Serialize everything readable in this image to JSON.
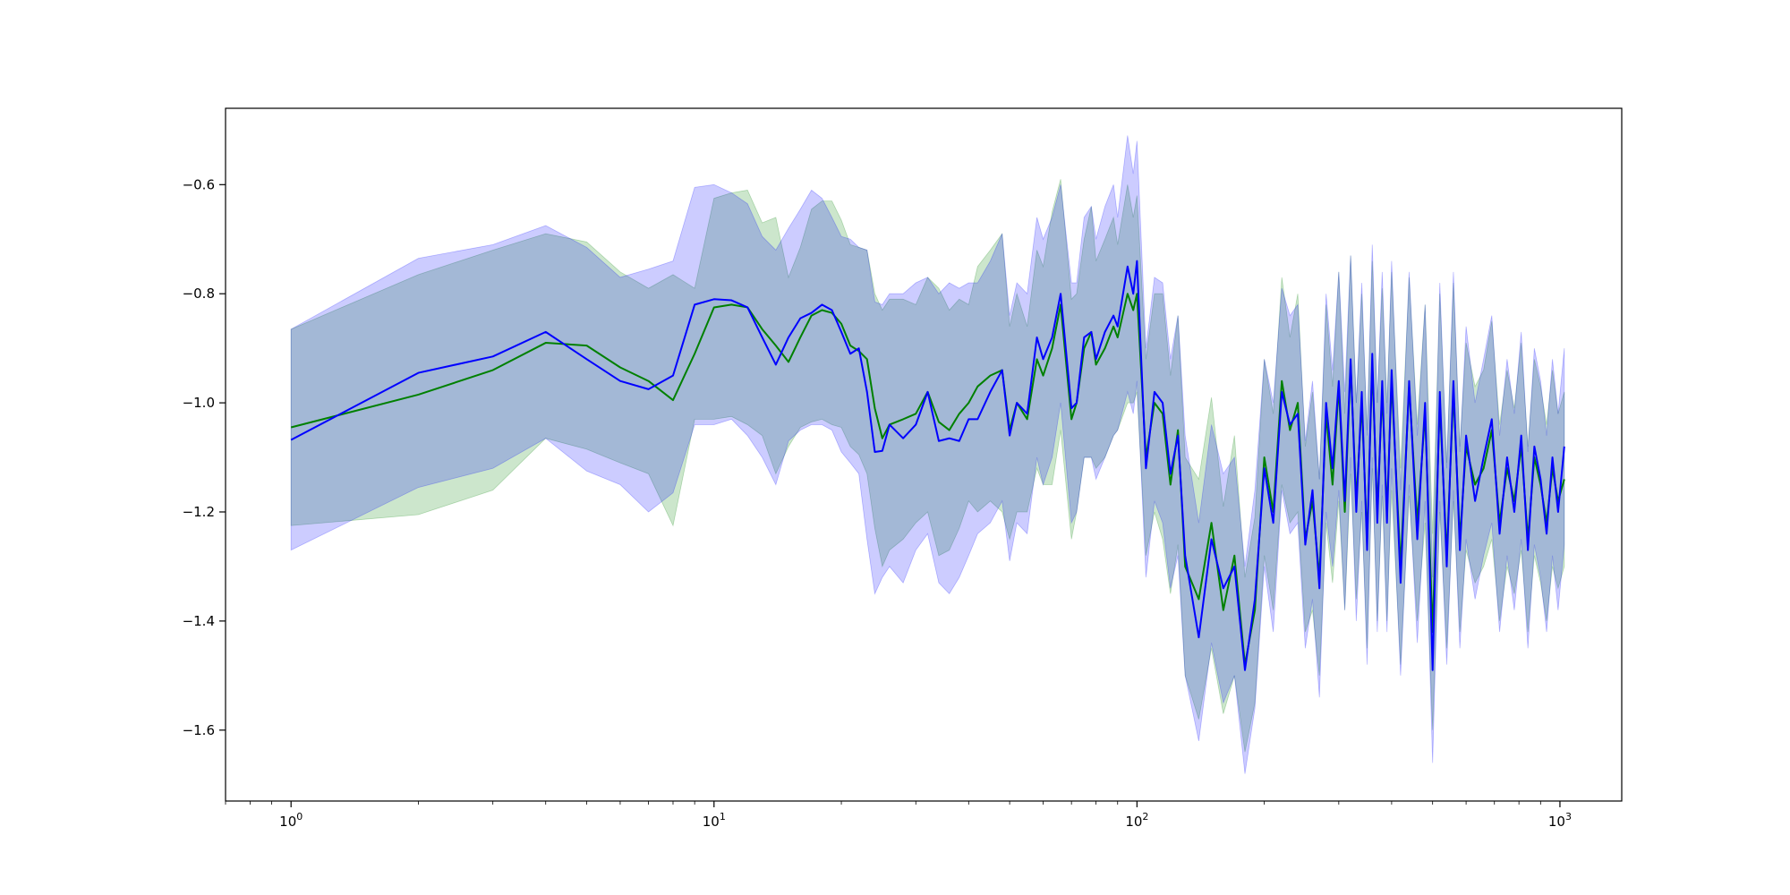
{
  "chart_data": {
    "type": "line",
    "title": "",
    "xlabel": "",
    "ylabel": "",
    "xscale": "log",
    "xlim": [
      0.7,
      1400
    ],
    "ylim": [
      -1.73,
      -0.46
    ],
    "grid": false,
    "legend": "none",
    "x_ticks": [
      {
        "value": 1,
        "base": "10",
        "exp": "0"
      },
      {
        "value": 10,
        "base": "10",
        "exp": "1"
      },
      {
        "value": 100,
        "base": "10",
        "exp": "2"
      },
      {
        "value": 1000,
        "base": "10",
        "exp": "3"
      }
    ],
    "y_ticks": [
      {
        "value": -0.6,
        "label": "−0.6"
      },
      {
        "value": -0.8,
        "label": "−0.8"
      },
      {
        "value": -1.0,
        "label": "−1.0"
      },
      {
        "value": -1.2,
        "label": "−1.2"
      },
      {
        "value": -1.4,
        "label": "−1.4"
      },
      {
        "value": -1.6,
        "label": "−1.6"
      }
    ],
    "series": [
      {
        "color": "#008000",
        "band_color": "#008000",
        "x": [
          1,
          2,
          3,
          4,
          5,
          6,
          7,
          8,
          9,
          10,
          11,
          12,
          13,
          14,
          15,
          16,
          17,
          18,
          19,
          20,
          21,
          22,
          23,
          24,
          25,
          26,
          28,
          30,
          32,
          34,
          36,
          38,
          40,
          42,
          45,
          48,
          50,
          52,
          55,
          58,
          60,
          63,
          66,
          70,
          72,
          75,
          78,
          80,
          84,
          88,
          90,
          95,
          98,
          100,
          105,
          110,
          115,
          120,
          125,
          130,
          140,
          150,
          160,
          170,
          180,
          190,
          200,
          210,
          220,
          230,
          240,
          250,
          260,
          270,
          280,
          290,
          300,
          310,
          320,
          330,
          340,
          350,
          360,
          370,
          380,
          390,
          400,
          420,
          440,
          460,
          480,
          500,
          520,
          540,
          560,
          580,
          600,
          630,
          660,
          690,
          720,
          750,
          780,
          810,
          840,
          870,
          900,
          930,
          960,
          990,
          1024
        ],
        "y": [
          -1.045,
          -0.985,
          -0.94,
          -0.89,
          -0.895,
          -0.935,
          -0.96,
          -0.995,
          -0.91,
          -0.825,
          -0.82,
          -0.825,
          -0.865,
          -0.895,
          -0.925,
          -0.88,
          -0.84,
          -0.83,
          -0.835,
          -0.855,
          -0.895,
          -0.905,
          -0.92,
          -1.01,
          -1.065,
          -1.04,
          -1.03,
          -1.02,
          -0.98,
          -1.035,
          -1.05,
          -1.02,
          -1.0,
          -0.97,
          -0.95,
          -0.94,
          -1.05,
          -1.0,
          -1.03,
          -0.92,
          -0.95,
          -0.9,
          -0.82,
          -1.03,
          -1.0,
          -0.9,
          -0.87,
          -0.93,
          -0.9,
          -0.86,
          -0.88,
          -0.8,
          -0.83,
          -0.8,
          -1.1,
          -1.0,
          -1.02,
          -1.15,
          -1.05,
          -1.3,
          -1.36,
          -1.22,
          -1.38,
          -1.28,
          -1.48,
          -1.38,
          -1.1,
          -1.2,
          -0.96,
          -1.05,
          -1.0,
          -1.25,
          -1.18,
          -1.32,
          -1.02,
          -1.15,
          -0.97,
          -1.2,
          -0.93,
          -1.18,
          -1.0,
          -1.25,
          -0.93,
          -1.2,
          -0.98,
          -1.2,
          -0.96,
          -1.3,
          -0.97,
          -1.22,
          -1.02,
          -1.42,
          -1.0,
          -1.28,
          -0.98,
          -1.25,
          -1.08,
          -1.15,
          -1.12,
          -1.05,
          -1.22,
          -1.12,
          -1.18,
          -1.08,
          -1.25,
          -1.1,
          -1.15,
          -1.22,
          -1.12,
          -1.18,
          -1.14
        ],
        "lower": [
          -1.225,
          -1.205,
          -1.16,
          -1.065,
          -1.085,
          -1.11,
          -1.13,
          -1.225,
          -1.03,
          -1.03,
          -1.025,
          -1.04,
          -1.06,
          -1.13,
          -1.08,
          -1.045,
          -1.035,
          -1.03,
          -1.04,
          -1.045,
          -1.08,
          -1.095,
          -1.13,
          -1.23,
          -1.3,
          -1.27,
          -1.25,
          -1.22,
          -1.2,
          -1.28,
          -1.27,
          -1.23,
          -1.18,
          -1.2,
          -1.18,
          -1.2,
          -1.25,
          -1.2,
          -1.2,
          -1.12,
          -1.15,
          -1.15,
          -1.05,
          -1.25,
          -1.2,
          -1.1,
          -1.1,
          -1.12,
          -1.1,
          -1.06,
          -1.05,
          -1.0,
          -1.0,
          -0.98,
          -1.28,
          -1.2,
          -1.25,
          -1.35,
          -1.26,
          -1.5,
          -1.58,
          -1.45,
          -1.57,
          -1.5,
          -1.64,
          -1.55,
          -1.28,
          -1.38,
          -1.15,
          -1.22,
          -1.2,
          -1.42,
          -1.38,
          -1.5,
          -1.22,
          -1.33,
          -1.18,
          -1.38,
          -1.13,
          -1.36,
          -1.2,
          -1.45,
          -1.12,
          -1.4,
          -1.17,
          -1.4,
          -1.16,
          -1.48,
          -1.17,
          -1.4,
          -1.22,
          -1.6,
          -1.2,
          -1.45,
          -1.18,
          -1.42,
          -1.27,
          -1.33,
          -1.3,
          -1.25,
          -1.4,
          -1.3,
          -1.35,
          -1.27,
          -1.42,
          -1.28,
          -1.33,
          -1.4,
          -1.3,
          -1.34,
          -1.3
        ],
        "upper": [
          -0.865,
          -0.765,
          -0.72,
          -0.69,
          -0.705,
          -0.76,
          -0.79,
          -0.765,
          -0.79,
          -0.625,
          -0.615,
          -0.61,
          -0.67,
          -0.66,
          -0.77,
          -0.715,
          -0.645,
          -0.63,
          -0.63,
          -0.665,
          -0.71,
          -0.715,
          -0.72,
          -0.8,
          -0.83,
          -0.81,
          -0.81,
          -0.82,
          -0.77,
          -0.79,
          -0.83,
          -0.81,
          -0.82,
          -0.75,
          -0.72,
          -0.69,
          -0.86,
          -0.8,
          -0.86,
          -0.72,
          -0.75,
          -0.65,
          -0.59,
          -0.81,
          -0.8,
          -0.7,
          -0.64,
          -0.74,
          -0.7,
          -0.66,
          -0.71,
          -0.6,
          -0.66,
          -0.62,
          -0.92,
          -0.8,
          -0.8,
          -0.95,
          -0.84,
          -1.1,
          -1.14,
          -0.99,
          -1.19,
          -1.06,
          -1.32,
          -1.21,
          -0.92,
          -1.02,
          -0.77,
          -0.88,
          -0.8,
          -1.08,
          -0.98,
          -1.14,
          -0.82,
          -0.97,
          -0.76,
          -1.02,
          -0.73,
          -1.0,
          -0.8,
          -1.05,
          -0.74,
          -1.0,
          -0.79,
          -1.0,
          -0.76,
          -1.12,
          -0.77,
          -1.04,
          -0.82,
          -1.24,
          -0.8,
          -1.11,
          -0.78,
          -1.08,
          -0.89,
          -0.97,
          -0.94,
          -0.85,
          -1.04,
          -0.94,
          -1.01,
          -0.89,
          -1.08,
          -0.92,
          -0.97,
          -1.04,
          -0.94,
          -1.02,
          -0.98
        ]
      },
      {
        "color": "#0000ff",
        "band_color": "#0000ff",
        "x": [
          1,
          2,
          3,
          4,
          5,
          6,
          7,
          8,
          9,
          10,
          11,
          12,
          13,
          14,
          15,
          16,
          17,
          18,
          19,
          20,
          21,
          22,
          23,
          24,
          25,
          26,
          28,
          30,
          32,
          34,
          36,
          38,
          40,
          42,
          45,
          48,
          50,
          52,
          55,
          58,
          60,
          63,
          66,
          70,
          72,
          75,
          78,
          80,
          84,
          88,
          90,
          95,
          98,
          100,
          105,
          110,
          115,
          120,
          125,
          130,
          140,
          150,
          160,
          170,
          180,
          190,
          200,
          210,
          220,
          230,
          240,
          250,
          260,
          270,
          280,
          290,
          300,
          310,
          320,
          330,
          340,
          350,
          360,
          370,
          380,
          390,
          400,
          420,
          440,
          460,
          480,
          500,
          520,
          540,
          560,
          580,
          600,
          630,
          660,
          690,
          720,
          750,
          780,
          810,
          840,
          870,
          900,
          930,
          960,
          990,
          1024
        ],
        "y": [
          -1.068,
          -0.945,
          -0.915,
          -0.87,
          -0.92,
          -0.96,
          -0.975,
          -0.95,
          -0.82,
          -0.81,
          -0.812,
          -0.825,
          -0.88,
          -0.93,
          -0.88,
          -0.845,
          -0.835,
          -0.82,
          -0.83,
          -0.87,
          -0.91,
          -0.9,
          -0.98,
          -1.09,
          -1.088,
          -1.04,
          -1.065,
          -1.04,
          -0.98,
          -1.07,
          -1.065,
          -1.07,
          -1.03,
          -1.03,
          -0.98,
          -0.94,
          -1.06,
          -1.0,
          -1.02,
          -0.88,
          -0.92,
          -0.88,
          -0.8,
          -1.01,
          -1.0,
          -0.88,
          -0.87,
          -0.92,
          -0.87,
          -0.84,
          -0.86,
          -0.75,
          -0.8,
          -0.74,
          -1.12,
          -0.98,
          -1.0,
          -1.13,
          -1.06,
          -1.28,
          -1.43,
          -1.25,
          -1.34,
          -1.3,
          -1.49,
          -1.36,
          -1.12,
          -1.22,
          -0.98,
          -1.04,
          -1.02,
          -1.26,
          -1.16,
          -1.34,
          -1.0,
          -1.12,
          -0.96,
          -1.18,
          -0.92,
          -1.2,
          -0.98,
          -1.27,
          -0.91,
          -1.22,
          -0.96,
          -1.22,
          -0.94,
          -1.33,
          -0.96,
          -1.25,
          -1.0,
          -1.49,
          -0.98,
          -1.3,
          -0.96,
          -1.27,
          -1.06,
          -1.18,
          -1.1,
          -1.03,
          -1.24,
          -1.1,
          -1.2,
          -1.06,
          -1.27,
          -1.08,
          -1.14,
          -1.24,
          -1.1,
          -1.2,
          -1.08
        ],
        "lower": [
          -1.27,
          -1.155,
          -1.12,
          -1.065,
          -1.125,
          -1.15,
          -1.2,
          -1.165,
          -1.04,
          -1.04,
          -1.03,
          -1.06,
          -1.1,
          -1.15,
          -1.07,
          -1.05,
          -1.04,
          -1.04,
          -1.05,
          -1.09,
          -1.11,
          -1.13,
          -1.25,
          -1.35,
          -1.32,
          -1.3,
          -1.33,
          -1.27,
          -1.24,
          -1.33,
          -1.35,
          -1.32,
          -1.28,
          -1.24,
          -1.22,
          -1.18,
          -1.29,
          -1.22,
          -1.24,
          -1.1,
          -1.15,
          -1.1,
          -1.0,
          -1.22,
          -1.2,
          -1.1,
          -1.1,
          -1.14,
          -1.1,
          -1.06,
          -1.05,
          -0.98,
          -1.02,
          -0.96,
          -1.32,
          -1.18,
          -1.22,
          -1.34,
          -1.28,
          -1.5,
          -1.62,
          -1.44,
          -1.55,
          -1.5,
          -1.68,
          -1.56,
          -1.3,
          -1.42,
          -1.16,
          -1.24,
          -1.22,
          -1.45,
          -1.36,
          -1.54,
          -1.2,
          -1.3,
          -1.16,
          -1.38,
          -1.1,
          -1.4,
          -1.18,
          -1.48,
          -1.1,
          -1.42,
          -1.15,
          -1.42,
          -1.12,
          -1.5,
          -1.15,
          -1.44,
          -1.18,
          -1.66,
          -1.18,
          -1.48,
          -1.16,
          -1.45,
          -1.25,
          -1.36,
          -1.28,
          -1.22,
          -1.42,
          -1.28,
          -1.38,
          -1.25,
          -1.45,
          -1.26,
          -1.32,
          -1.42,
          -1.28,
          -1.38,
          -1.26
        ],
        "upper": [
          -0.865,
          -0.735,
          -0.71,
          -0.675,
          -0.715,
          -0.77,
          -0.755,
          -0.74,
          -0.605,
          -0.6,
          -0.615,
          -0.635,
          -0.695,
          -0.72,
          -0.68,
          -0.645,
          -0.61,
          -0.625,
          -0.66,
          -0.695,
          -0.7,
          -0.715,
          -0.72,
          -0.815,
          -0.82,
          -0.8,
          -0.8,
          -0.78,
          -0.77,
          -0.8,
          -0.78,
          -0.79,
          -0.78,
          -0.78,
          -0.74,
          -0.69,
          -0.84,
          -0.78,
          -0.8,
          -0.66,
          -0.7,
          -0.66,
          -0.6,
          -0.78,
          -0.78,
          -0.66,
          -0.64,
          -0.7,
          -0.64,
          -0.6,
          -0.66,
          -0.51,
          -0.58,
          -0.52,
          -0.9,
          -0.77,
          -0.78,
          -0.92,
          -0.84,
          -1.06,
          -1.22,
          -1.04,
          -1.13,
          -1.1,
          -1.3,
          -1.16,
          -0.92,
          -1.0,
          -0.79,
          -0.84,
          -0.82,
          -1.07,
          -0.96,
          -1.14,
          -0.8,
          -0.94,
          -0.76,
          -0.98,
          -0.73,
          -1.0,
          -0.78,
          -1.06,
          -0.71,
          -1.0,
          -0.76,
          -1.02,
          -0.74,
          -1.16,
          -0.76,
          -1.06,
          -0.82,
          -1.32,
          -0.78,
          -1.12,
          -0.76,
          -1.09,
          -0.86,
          -1.0,
          -0.92,
          -0.84,
          -1.06,
          -0.92,
          -1.02,
          -0.87,
          -1.09,
          -0.9,
          -0.96,
          -1.06,
          -0.92,
          -1.02,
          -0.9
        ]
      }
    ]
  }
}
